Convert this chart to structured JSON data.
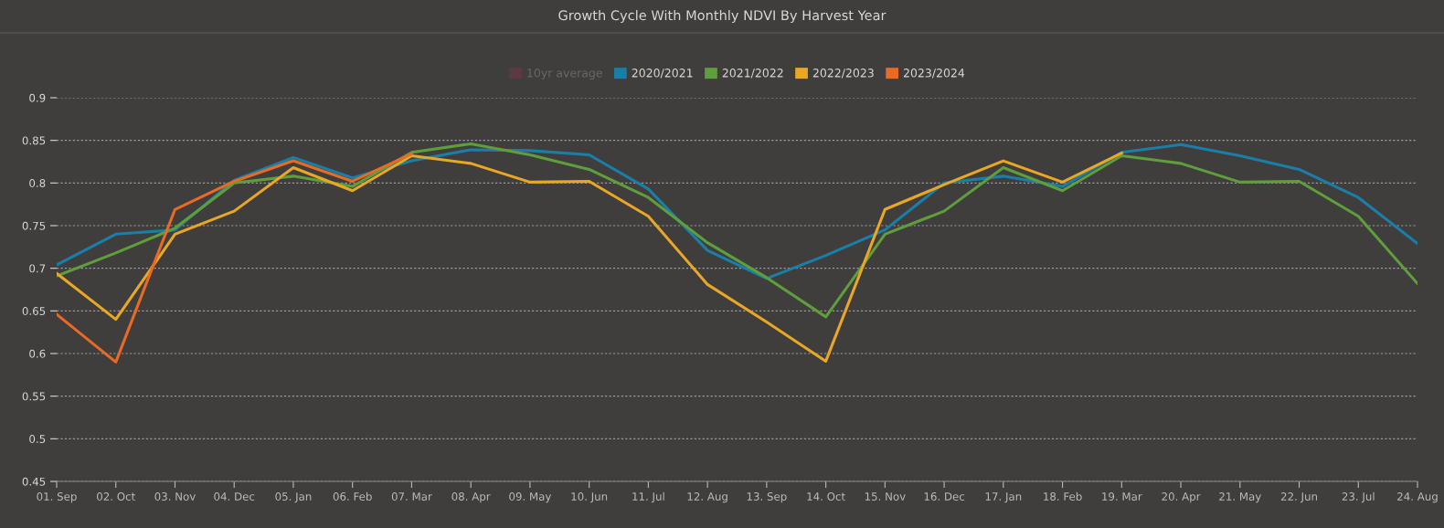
{
  "chart_data": {
    "type": "line",
    "title": "Growth Cycle With Monthly NDVI By Harvest Year",
    "categories": [
      "01. Sep",
      "02. Oct",
      "03. Nov",
      "04. Dec",
      "05. Jan",
      "06. Feb",
      "07. Mar",
      "08. Apr",
      "09. May",
      "10. Jun",
      "11. Jul",
      "12. Aug",
      "13. Sep",
      "14. Oct",
      "15. Nov",
      "16. Dec",
      "17. Jan",
      "18. Feb",
      "19. Mar",
      "20. Apr",
      "21. May",
      "22. Jun",
      "23. Jul",
      "24. Aug"
    ],
    "series": [
      {
        "name": "10yr average",
        "color": "#5c3a45",
        "values": [
          null,
          null,
          null,
          null,
          null,
          null,
          null,
          null,
          null,
          null,
          null,
          null,
          null,
          null,
          null,
          null,
          null,
          null,
          null,
          null,
          null,
          null,
          null,
          null
        ]
      },
      {
        "name": "2020/2021",
        "color": "#1a7fa8",
        "values": [
          0.704,
          0.74,
          0.745,
          0.803,
          0.83,
          0.806,
          0.826,
          0.839,
          0.838,
          0.833,
          0.793,
          0.721,
          0.688,
          0.715,
          0.745,
          0.8,
          0.808,
          0.796,
          0.836,
          0.845,
          0.832,
          0.816,
          0.783,
          0.729
        ]
      },
      {
        "name": "2021/2022",
        "color": "#5e9e3c",
        "values": [
          0.691,
          0.718,
          0.747,
          0.8,
          0.808,
          0.796,
          0.836,
          0.846,
          0.833,
          0.816,
          0.783,
          0.73,
          0.689,
          0.643,
          0.74,
          0.767,
          0.818,
          0.791,
          0.832,
          0.823,
          0.801,
          0.802,
          0.761,
          0.682
        ]
      },
      {
        "name": "2022/2023",
        "color": "#e8a825",
        "values": [
          0.694,
          0.64,
          0.74,
          0.767,
          0.818,
          0.791,
          0.832,
          0.823,
          0.801,
          0.802,
          0.761,
          0.681,
          0.637,
          0.591,
          0.769,
          0.798,
          0.826,
          0.801,
          0.835,
          null,
          null,
          null,
          null,
          null
        ]
      },
      {
        "name": "2023/2024",
        "color": "#e86a24",
        "values": [
          0.646,
          0.59,
          0.769,
          0.802,
          0.826,
          0.802,
          0.834,
          null,
          null,
          null,
          null,
          null,
          null,
          null,
          null,
          null,
          null,
          null,
          null,
          null,
          null,
          null,
          null,
          null
        ]
      }
    ],
    "ylim": [
      0.45,
      0.9
    ],
    "yticks": [
      0.45,
      0.5,
      0.55,
      0.6,
      0.65,
      0.7,
      0.75,
      0.8,
      0.85,
      0.9
    ],
    "grid": "y",
    "legend": "top",
    "marker": "none",
    "line_style": "solid"
  }
}
